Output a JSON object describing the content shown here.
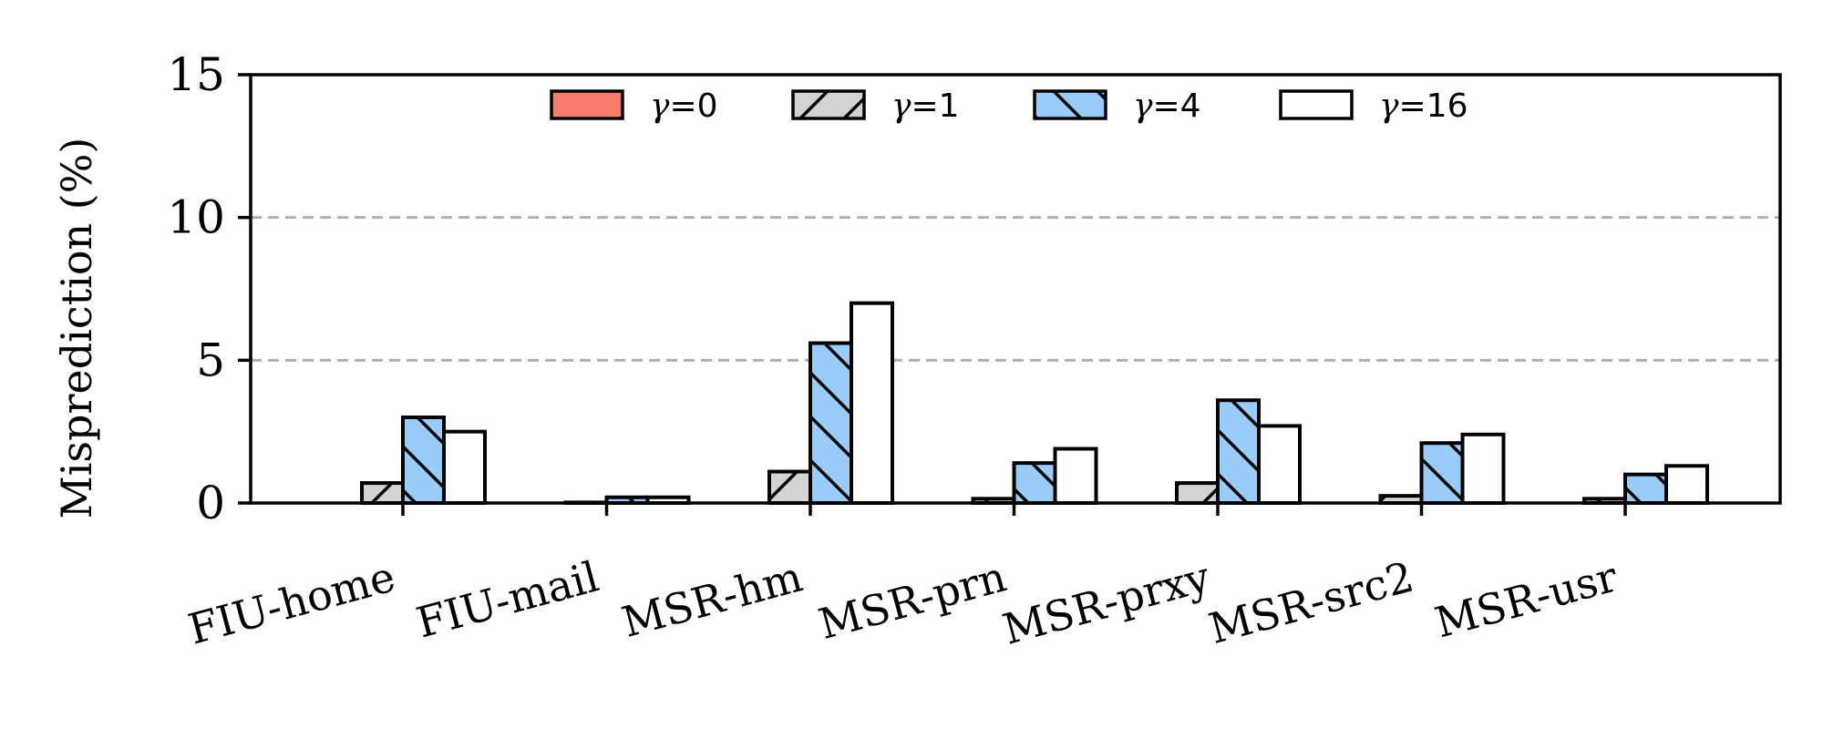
{
  "chart_data": {
    "type": "bar",
    "ylabel": "Misprediction (%)",
    "xlabel": "",
    "ylim": [
      0,
      15
    ],
    "yticks": [
      "0",
      "5",
      "10",
      "15"
    ],
    "grid": "horizontal-dashed",
    "legend_position": "top-center",
    "categories": [
      "FIU-home",
      "FIU-mail",
      "MSR-hm",
      "MSR-prn",
      "MSR-prxy",
      "MSR-src2",
      "MSR-usr"
    ],
    "series": [
      {
        "name": "γ=0",
        "symbol": "γ",
        "suffix": "=0",
        "color": "#fa7b6c",
        "hatch": "none",
        "values": [
          0.0,
          0.0,
          0.0,
          0.0,
          0.0,
          0.0,
          0.0
        ]
      },
      {
        "name": "γ=1",
        "symbol": "γ",
        "suffix": "=1",
        "color": "#d3d3d3",
        "hatch": "forward",
        "values": [
          0.7,
          0.02,
          1.1,
          0.15,
          0.7,
          0.25,
          0.15
        ]
      },
      {
        "name": "γ=4",
        "symbol": "γ",
        "suffix": "=4",
        "color": "#99ccf9",
        "hatch": "back",
        "values": [
          3.0,
          0.2,
          5.6,
          1.4,
          3.6,
          2.1,
          1.0
        ]
      },
      {
        "name": "γ=16",
        "symbol": "γ",
        "suffix": "=16",
        "color": "#ffffff",
        "hatch": "none",
        "values": [
          2.5,
          0.2,
          7.0,
          1.9,
          2.7,
          2.4,
          1.3
        ]
      }
    ]
  }
}
